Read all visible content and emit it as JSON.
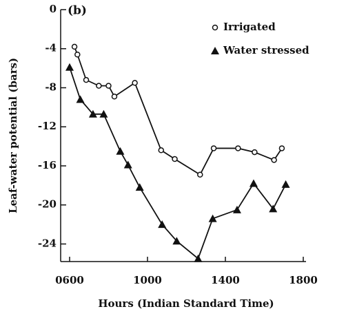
{
  "chart_data": {
    "type": "line",
    "panel_label": "(b)",
    "xlabel": "Hours (Indian Standard Time)",
    "ylabel": "Leaf-water potential (bars)",
    "xlim": [
      6,
      18
    ],
    "ylim": [
      -25.8,
      0
    ],
    "xticks": [
      {
        "value": 6,
        "label": "0600"
      },
      {
        "value": 10,
        "label": "1000"
      },
      {
        "value": 14,
        "label": "1400"
      },
      {
        "value": 18,
        "label": "1800"
      }
    ],
    "yticks": [
      0,
      -4,
      -8,
      -12,
      -16,
      -20,
      -24
    ],
    "legend": "upper right",
    "series": [
      {
        "name": "Irrigated",
        "color": "#111111",
        "marker": "circle",
        "x": [
          6.25,
          6.4,
          6.85,
          7.5,
          8.0,
          8.3,
          9.35,
          10.7,
          11.4,
          12.7,
          13.4,
          14.65,
          15.5,
          16.5,
          16.9
        ],
        "values": [
          -3.8,
          -4.6,
          -7.2,
          -7.8,
          -7.8,
          -8.9,
          -7.5,
          -14.4,
          -15.3,
          -16.9,
          -14.2,
          -14.2,
          -14.6,
          -15.4,
          -14.2
        ]
      },
      {
        "name": "Water stressed",
        "color": "#111111",
        "marker": "triangle",
        "x": [
          6.0,
          6.55,
          7.2,
          7.75,
          8.6,
          9.0,
          9.6,
          10.75,
          11.5,
          12.6,
          13.35,
          14.6,
          15.45,
          16.45,
          17.1
        ],
        "values": [
          -5.9,
          -9.2,
          -10.7,
          -10.7,
          -14.5,
          -15.9,
          -18.2,
          -22.0,
          -23.7,
          -25.5,
          -21.4,
          -20.5,
          -17.8,
          -20.4,
          -17.9
        ]
      }
    ]
  }
}
